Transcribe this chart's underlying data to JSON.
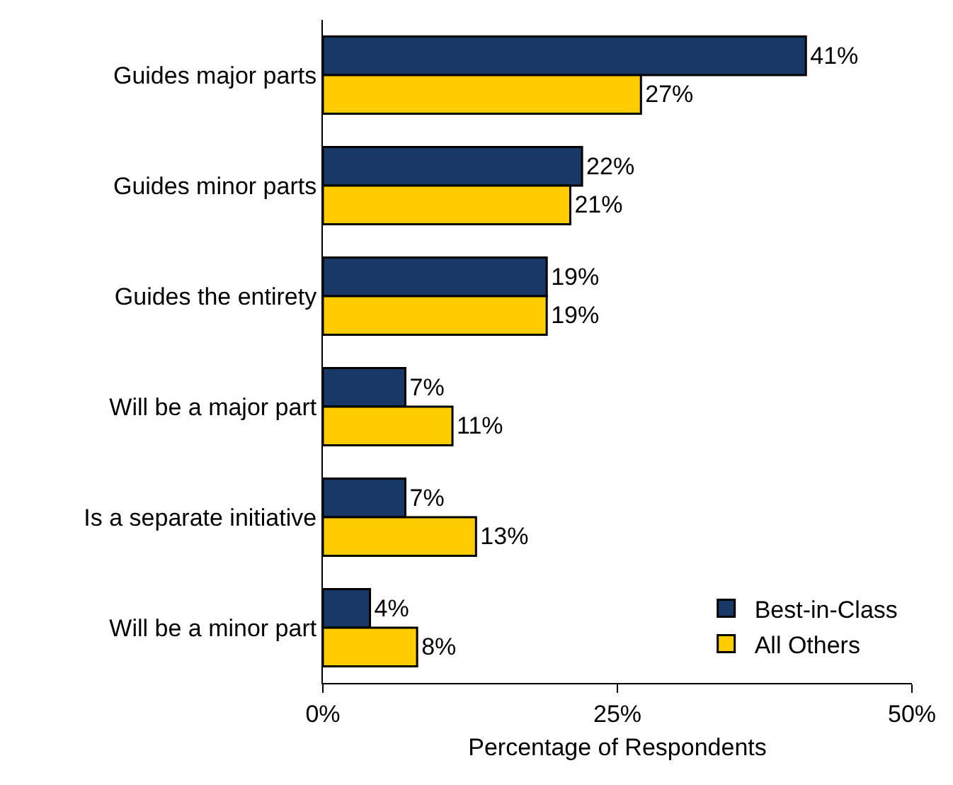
{
  "chart_data": {
    "type": "bar",
    "orientation": "horizontal",
    "xlabel": "Percentage of Respondents",
    "categories": [
      "Guides major parts",
      "Guides minor parts",
      "Guides the entirety",
      "Will be a major part",
      "Is a separate initiative",
      "Will be a minor part"
    ],
    "series": [
      {
        "name": "Best-in-Class",
        "color": "#183868",
        "values": [
          41,
          22,
          19,
          7,
          7,
          4
        ],
        "value_labels": [
          "41%",
          "22%",
          "19%",
          "7%",
          "7%",
          "4%"
        ]
      },
      {
        "name": "All Others",
        "color": "#ffcc00",
        "values": [
          27,
          21,
          19,
          11,
          13,
          8
        ],
        "value_labels": [
          "27%",
          "21%",
          "19%",
          "11%",
          "13%",
          "8%"
        ]
      }
    ],
    "xlim": [
      0,
      50
    ],
    "xticks": [
      {
        "value": 0,
        "label": "0%"
      },
      {
        "value": 25,
        "label": "25%"
      },
      {
        "value": 50,
        "label": "50%"
      }
    ],
    "grid": false,
    "legend": "bottom right"
  }
}
